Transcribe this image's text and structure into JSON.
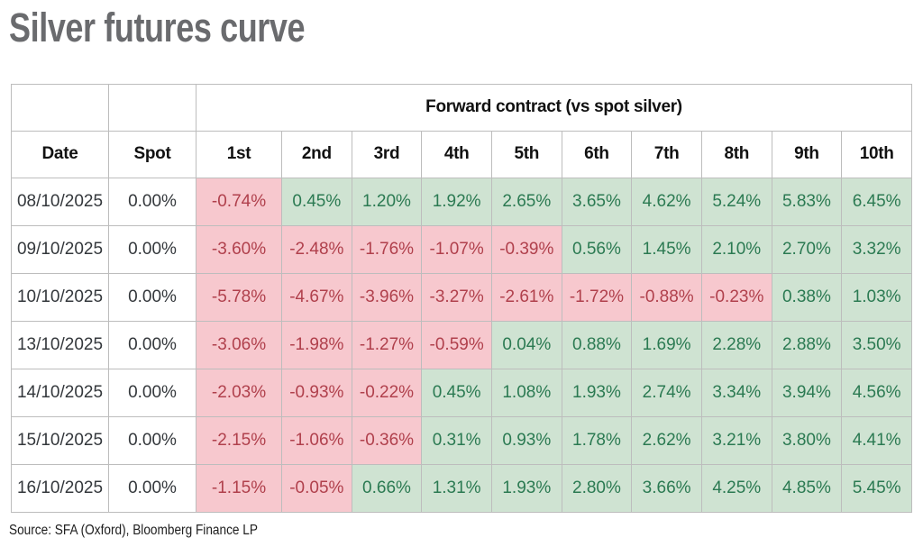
{
  "chart_data": {
    "type": "table",
    "title": "Silver futures curve",
    "group_header": "Forward contract (vs spot silver)",
    "columns": [
      "Date",
      "Spot",
      "1st",
      "2nd",
      "3rd",
      "4th",
      "5th",
      "6th",
      "7th",
      "8th",
      "9th",
      "10th"
    ],
    "rows": [
      {
        "date": "08/10/2025",
        "spot": "0.00%",
        "values": [
          "-0.74%",
          "0.45%",
          "1.20%",
          "1.92%",
          "2.65%",
          "3.65%",
          "4.62%",
          "5.24%",
          "5.83%",
          "6.45%"
        ]
      },
      {
        "date": "09/10/2025",
        "spot": "0.00%",
        "values": [
          "-3.60%",
          "-2.48%",
          "-1.76%",
          "-1.07%",
          "-0.39%",
          "0.56%",
          "1.45%",
          "2.10%",
          "2.70%",
          "3.32%"
        ]
      },
      {
        "date": "10/10/2025",
        "spot": "0.00%",
        "values": [
          "-5.78%",
          "-4.67%",
          "-3.96%",
          "-3.27%",
          "-2.61%",
          "-1.72%",
          "-0.88%",
          "-0.23%",
          "0.38%",
          "1.03%"
        ]
      },
      {
        "date": "13/10/2025",
        "spot": "0.00%",
        "values": [
          "-3.06%",
          "-1.98%",
          "-1.27%",
          "-0.59%",
          "0.04%",
          "0.88%",
          "1.69%",
          "2.28%",
          "2.88%",
          "3.50%"
        ]
      },
      {
        "date": "14/10/2025",
        "spot": "0.00%",
        "values": [
          "-2.03%",
          "-0.93%",
          "-0.22%",
          "0.45%",
          "1.08%",
          "1.93%",
          "2.74%",
          "3.34%",
          "3.94%",
          "4.56%"
        ]
      },
      {
        "date": "15/10/2025",
        "spot": "0.00%",
        "values": [
          "-2.15%",
          "-1.06%",
          "-0.36%",
          "0.31%",
          "0.93%",
          "1.78%",
          "2.62%",
          "3.21%",
          "3.80%",
          "4.41%"
        ]
      },
      {
        "date": "16/10/2025",
        "spot": "0.00%",
        "values": [
          "-1.15%",
          "-0.05%",
          "0.66%",
          "1.31%",
          "1.93%",
          "2.80%",
          "3.66%",
          "4.25%",
          "4.85%",
          "5.45%"
        ]
      }
    ],
    "source": "Source: SFA (Oxford), Bloomberg Finance LP",
    "value_coloring": "negative values shaded red, positive values shaded green",
    "legend_position": "none",
    "grid": true
  },
  "colors": {
    "negative_bg": "#f7c8ce",
    "negative_text": "#b0404c",
    "positive_bg": "#cfe3d2",
    "positive_text": "#2b7a52",
    "title_text": "#6a6b6e",
    "header_text": "#111111",
    "date_text": "#34383c",
    "source_text": "#202020",
    "border": "#bdbdbd"
  }
}
